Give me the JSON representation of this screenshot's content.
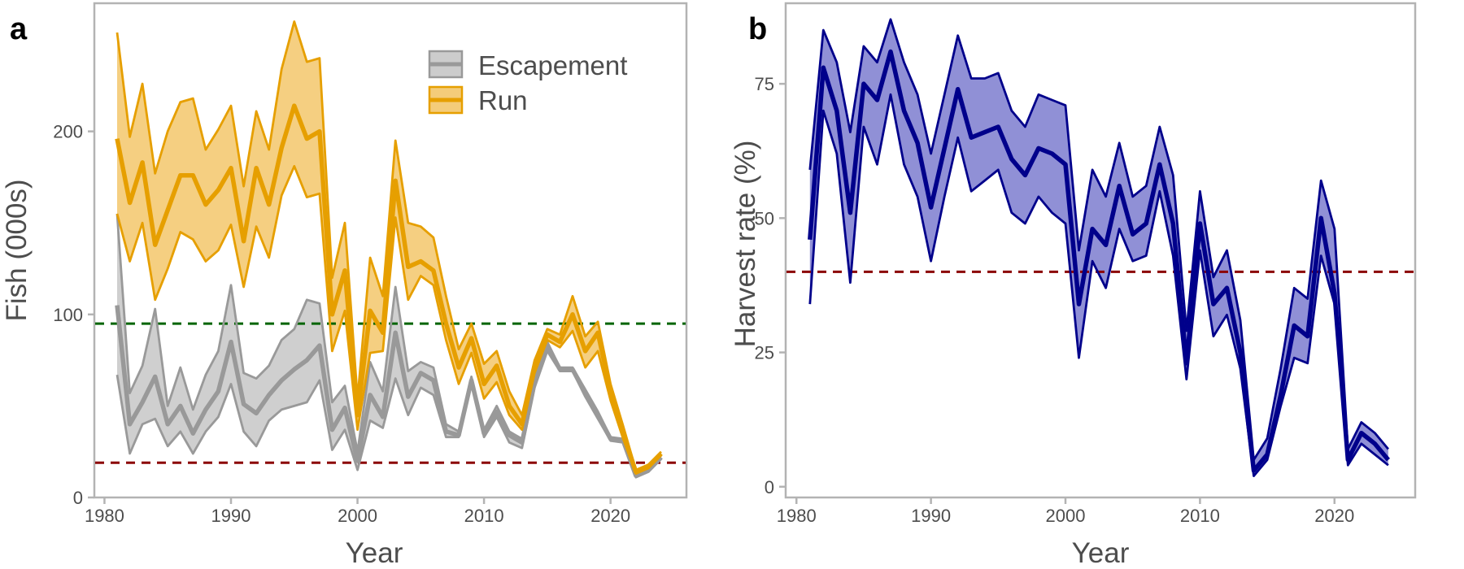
{
  "chart_data": [
    {
      "panel": "a",
      "type": "area",
      "title": "",
      "xlabel": "Year",
      "ylabel": "Fish (000s)",
      "xlim": [
        1979.2,
        2026.0
      ],
      "ylim": [
        0,
        270
      ],
      "xticks": [
        1980,
        1990,
        2000,
        2010,
        2020
      ],
      "yticks": [
        0,
        100,
        200
      ],
      "grid": false,
      "legend_position": "top-right",
      "reference_lines": [
        {
          "y": 95,
          "color": "#006400",
          "style": "dashed"
        },
        {
          "y": 19,
          "color": "#8b0000",
          "style": "dashed"
        }
      ],
      "x": [
        1981,
        1982,
        1983,
        1984,
        1985,
        1986,
        1987,
        1988,
        1989,
        1990,
        1991,
        1992,
        1993,
        1994,
        1995,
        1996,
        1997,
        1998,
        1999,
        2000,
        2001,
        2002,
        2003,
        2004,
        2005,
        2006,
        2007,
        2008,
        2009,
        2010,
        2011,
        2012,
        2013,
        2014,
        2015,
        2016,
        2017,
        2018,
        2019,
        2020,
        2021,
        2022,
        2023,
        2024
      ],
      "series": [
        {
          "name": "Escapement",
          "color": "#999999",
          "fill": "#cccccc",
          "mid": [
            105,
            40,
            52,
            66,
            40,
            50,
            35,
            48,
            58,
            85,
            51,
            46,
            56,
            64,
            70,
            75,
            83,
            37,
            49,
            20,
            56,
            44,
            90,
            55,
            68,
            64,
            36,
            34,
            64,
            35,
            47,
            34,
            30,
            63,
            83,
            70,
            70,
            57,
            45,
            32,
            31,
            12,
            15,
            22
          ],
          "low": [
            67,
            24,
            40,
            43,
            28,
            36,
            24,
            36,
            44,
            62,
            36,
            28,
            42,
            48,
            50,
            52,
            64,
            26,
            37,
            15,
            42,
            38,
            65,
            45,
            60,
            56,
            33,
            33,
            63,
            33,
            44,
            30,
            27,
            60,
            80,
            69,
            69,
            55,
            43,
            31,
            30,
            11,
            14,
            21
          ],
          "high": [
            155,
            57,
            72,
            103,
            50,
            71,
            48,
            67,
            80,
            116,
            68,
            65,
            72,
            86,
            92,
            108,
            106,
            52,
            61,
            25,
            74,
            58,
            115,
            69,
            74,
            71,
            40,
            36,
            66,
            37,
            50,
            36,
            32,
            66,
            85,
            71,
            71,
            59,
            47,
            33,
            32,
            13,
            16,
            23
          ]
        },
        {
          "name": "Run",
          "color": "#e69f00",
          "fill": "#f4cc7a",
          "mid": [
            196,
            161,
            183,
            138,
            157,
            176,
            176,
            160,
            168,
            180,
            140,
            180,
            160,
            191,
            214,
            196,
            200,
            100,
            124,
            45,
            102,
            90,
            173,
            126,
            129,
            124,
            95,
            71,
            87,
            62,
            72,
            50,
            40,
            72,
            89,
            85,
            100,
            80,
            90,
            58,
            35,
            14,
            17,
            24
          ],
          "low": [
            155,
            129,
            150,
            108,
            125,
            145,
            141,
            129,
            135,
            149,
            115,
            148,
            131,
            165,
            181,
            164,
            166,
            80,
            102,
            37,
            79,
            80,
            153,
            108,
            121,
            116,
            86,
            62,
            79,
            54,
            63,
            45,
            37,
            68,
            86,
            82,
            91,
            71,
            80,
            53,
            32,
            13,
            16,
            23
          ],
          "high": [
            254,
            197,
            226,
            177,
            200,
            216,
            218,
            190,
            201,
            214,
            170,
            211,
            190,
            234,
            260,
            238,
            240,
            120,
            150,
            54,
            131,
            110,
            195,
            150,
            148,
            142,
            110,
            81,
            95,
            73,
            80,
            58,
            45,
            75,
            92,
            89,
            110,
            88,
            96,
            62,
            39,
            15,
            18,
            25
          ]
        }
      ]
    },
    {
      "panel": "b",
      "type": "area",
      "title": "",
      "xlabel": "Year",
      "ylabel": "Harvest rate (%)",
      "xlim": [
        1979.2,
        2026.0
      ],
      "ylim": [
        -2,
        90
      ],
      "xticks": [
        1980,
        1990,
        2000,
        2010,
        2020
      ],
      "yticks": [
        0,
        25,
        50,
        75
      ],
      "grid": false,
      "reference_lines": [
        {
          "y": 40,
          "color": "#8b0000",
          "style": "dashed"
        }
      ],
      "x": [
        1981,
        1982,
        1983,
        1984,
        1985,
        1986,
        1987,
        1988,
        1989,
        1990,
        1991,
        1992,
        1993,
        1994,
        1995,
        1996,
        1997,
        1998,
        1999,
        2000,
        2001,
        2002,
        2003,
        2004,
        2005,
        2006,
        2007,
        2008,
        2009,
        2010,
        2011,
        2012,
        2013,
        2014,
        2015,
        2016,
        2017,
        2018,
        2019,
        2020,
        2021,
        2022,
        2023,
        2024
      ],
      "series": [
        {
          "color": "#00008b",
          "fill": "#8a8ad4",
          "mid": [
            46,
            78,
            70,
            51,
            75,
            72,
            81,
            70,
            64,
            52,
            63,
            74,
            65,
            66,
            67,
            61,
            58,
            63,
            62,
            60,
            34,
            48,
            45,
            56,
            47,
            49,
            60,
            49,
            23,
            49,
            34,
            37,
            25,
            3,
            6,
            17,
            30,
            28,
            50,
            36,
            5,
            10,
            8,
            5
          ],
          "low": [
            34,
            70,
            62,
            38,
            67,
            60,
            73,
            60,
            54,
            42,
            54,
            65,
            55,
            57,
            59,
            51,
            49,
            54,
            51,
            49,
            24,
            42,
            37,
            48,
            42,
            43,
            55,
            43,
            20,
            44,
            28,
            32,
            22,
            2,
            5,
            15,
            24,
            23,
            43,
            34,
            4,
            8,
            6,
            4
          ],
          "high": [
            59,
            85,
            79,
            66,
            82,
            79,
            87,
            79,
            73,
            62,
            73,
            84,
            76,
            76,
            77,
            70,
            67,
            73,
            72,
            71,
            44,
            59,
            54,
            64,
            54,
            56,
            67,
            58,
            29,
            55,
            39,
            44,
            31,
            5,
            9,
            22,
            37,
            35,
            57,
            48,
            7,
            12,
            10,
            7
          ]
        }
      ]
    }
  ],
  "panels": {
    "a": {
      "tag": "a"
    },
    "b": {
      "tag": "b"
    }
  },
  "legend": {
    "items": [
      {
        "label": "Escapement",
        "color": "#999999",
        "fill": "#cccccc"
      },
      {
        "label": "Run",
        "color": "#e69f00",
        "fill": "#f4cc7a"
      }
    ]
  }
}
